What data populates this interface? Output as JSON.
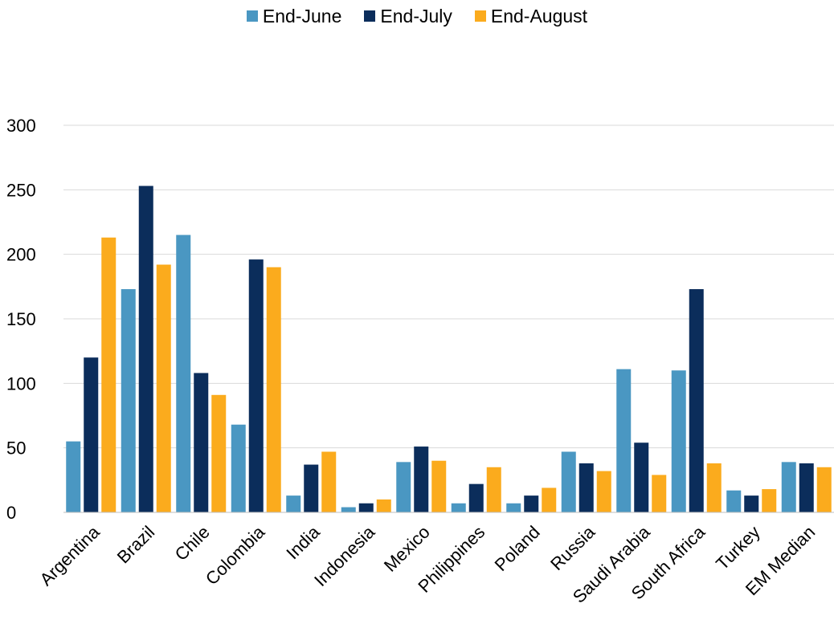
{
  "chart_data": {
    "type": "bar",
    "title": "",
    "xlabel": "",
    "ylabel": "",
    "ylim": [
      0,
      300
    ],
    "yticks": [
      0,
      50,
      100,
      150,
      200,
      250,
      300
    ],
    "grid": true,
    "legend_position": "top-center",
    "categories": [
      "Argentina",
      "Brazil",
      "Chile",
      "Colombia",
      "India",
      "Indonesia",
      "Mexico",
      "Philippines",
      "Poland",
      "Russia",
      "Saudi Arabia",
      "South Africa",
      "Turkey",
      "EM Median"
    ],
    "series": [
      {
        "name": "End-June",
        "color": "#4a97c2",
        "values": [
          55,
          173,
          215,
          68,
          13,
          4,
          39,
          7,
          7,
          47,
          111,
          110,
          17,
          39
        ]
      },
      {
        "name": "End-July",
        "color": "#0b2d5b",
        "values": [
          120,
          253,
          108,
          196,
          37,
          7,
          51,
          22,
          13,
          38,
          54,
          173,
          13,
          38
        ]
      },
      {
        "name": "End-August",
        "color": "#fbab1d",
        "values": [
          213,
          192,
          91,
          190,
          47,
          10,
          40,
          35,
          19,
          32,
          29,
          38,
          18,
          35
        ]
      }
    ]
  }
}
